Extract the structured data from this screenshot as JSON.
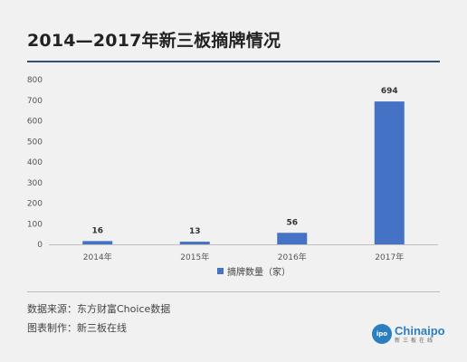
{
  "header": {
    "title": "2014—2017年新三板摘牌情况"
  },
  "chart_data": {
    "type": "bar",
    "categories": [
      "2014年",
      "2015年",
      "2016年",
      "2017年"
    ],
    "series": [
      {
        "name": "摘牌数量（家）",
        "values": [
          16,
          13,
          56,
          694
        ]
      }
    ],
    "title": "2014—2017年新三板摘牌情况",
    "xlabel": "",
    "ylabel": "",
    "ylim": [
      0,
      800
    ],
    "yticks": [
      0,
      100,
      200,
      300,
      400,
      500,
      600,
      700,
      800
    ],
    "grid": false,
    "data_labels": [
      "16",
      "13",
      "56",
      "694"
    ],
    "legend_position": "bottom-center",
    "bar_color": "#4472c4"
  },
  "footer": {
    "source": "数据来源：东方财富Choice数据",
    "maker": "图表制作：新三板在线"
  },
  "logo": {
    "circle_text": "ipo",
    "word": "Chinaipo",
    "sub": "新三板在线"
  },
  "colors": {
    "accent": "#2f4f73",
    "bar": "#4472c4",
    "logo": "#2a7fc0"
  }
}
